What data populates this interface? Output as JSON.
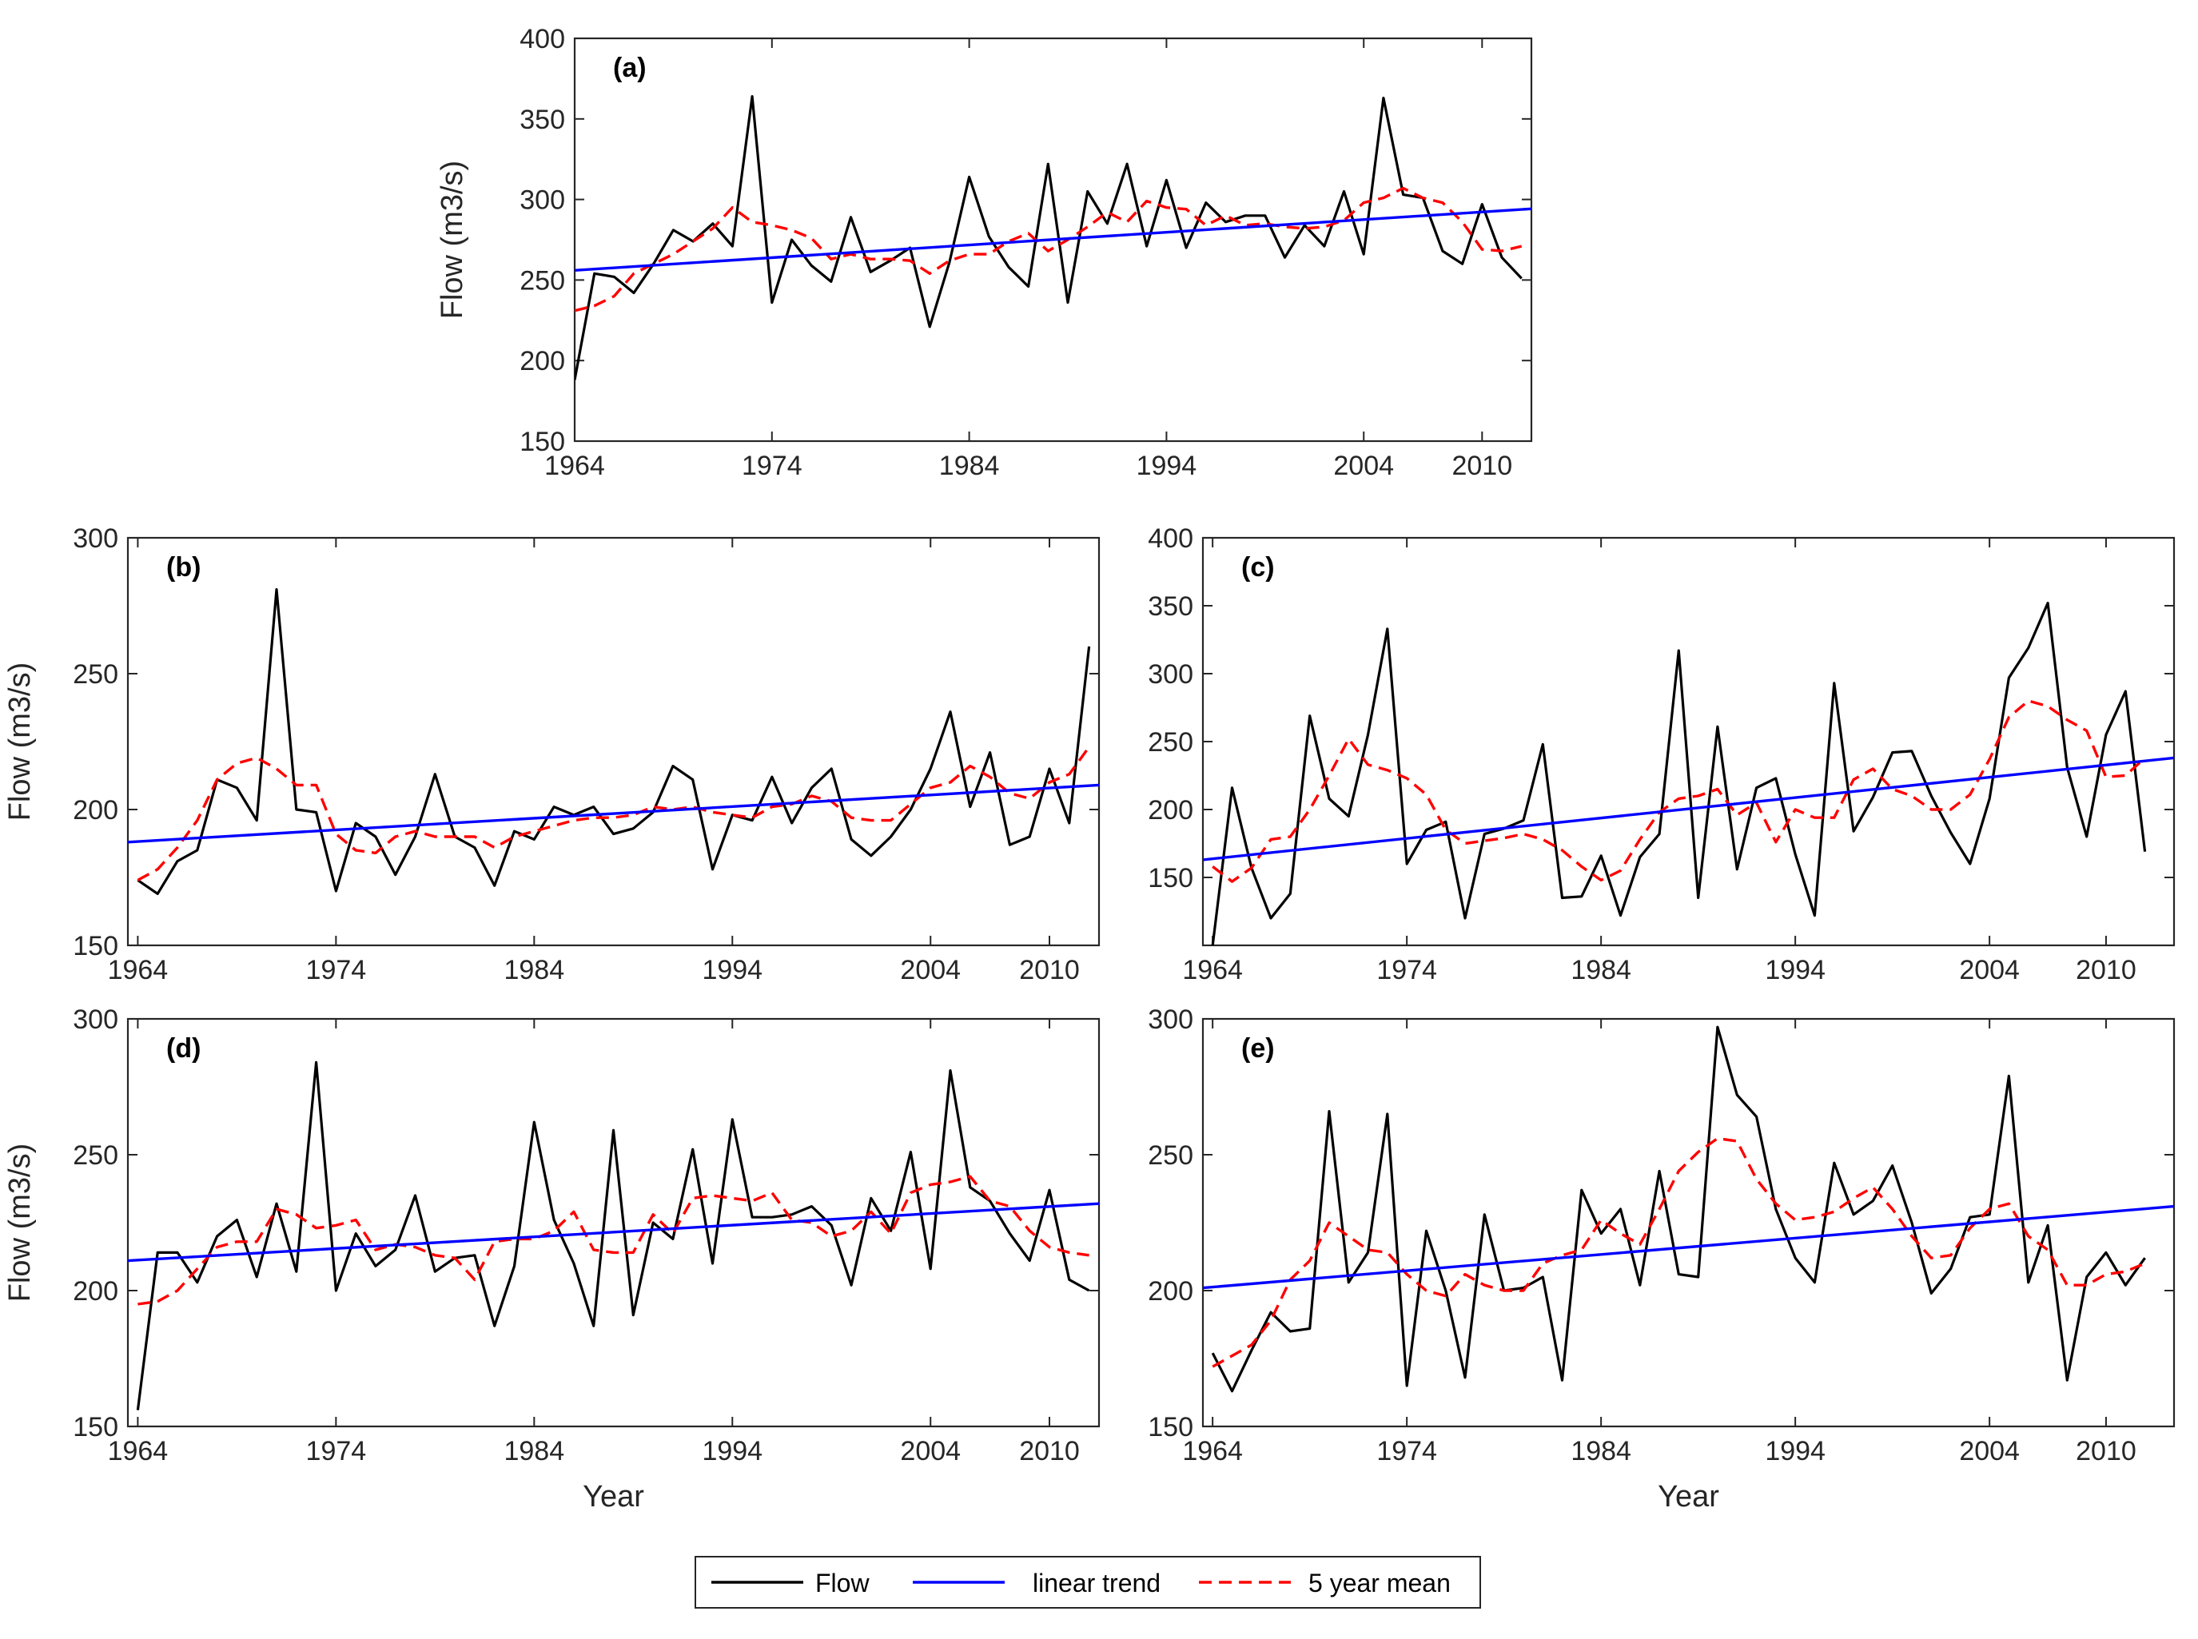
{
  "colors": {
    "flow": "#000000",
    "linear_trend": "#0000ff",
    "five_year_mean": "#ff0000",
    "axes": "#262626",
    "background": "#ffffff"
  },
  "legend": {
    "placement": "bottom-center",
    "entries": [
      {
        "name": "Flow",
        "style": "solid",
        "color_key": "flow"
      },
      {
        "name": "linear trend",
        "style": "solid",
        "color_key": "linear_trend"
      },
      {
        "name": "5 year mean",
        "style": "dashed",
        "color_key": "five_year_mean"
      }
    ]
  },
  "chart_data": [
    {
      "panel": "(a)",
      "type": "line",
      "title": "",
      "xlabel": "",
      "ylabel": "Flow (m3/s)",
      "xlim": [
        1964,
        2012.5
      ],
      "ylim": [
        150,
        400
      ],
      "xticks": [
        1964,
        1974,
        1984,
        1994,
        2004,
        2010
      ],
      "yticks": [
        150,
        200,
        250,
        300,
        350,
        400
      ],
      "x": [
        1964,
        1965,
        1966,
        1967,
        1968,
        1969,
        1970,
        1971,
        1972,
        1973,
        1974,
        1975,
        1976,
        1977,
        1978,
        1979,
        1980,
        1981,
        1982,
        1983,
        1984,
        1985,
        1986,
        1987,
        1988,
        1989,
        1990,
        1991,
        1992,
        1993,
        1994,
        1995,
        1996,
        1997,
        1998,
        1999,
        2000,
        2001,
        2002,
        2003,
        2004,
        2005,
        2006,
        2007,
        2008,
        2009,
        2010,
        2011,
        2012
      ],
      "series": [
        {
          "name": "Flow",
          "style": "solid",
          "color_key": "flow",
          "values": [
            188,
            254,
            252,
            242,
            260,
            281,
            274,
            285,
            271,
            364,
            236,
            275,
            259,
            249,
            289,
            255,
            262,
            270,
            221,
            261,
            314,
            277,
            258,
            246,
            322,
            236,
            305,
            285,
            322,
            271,
            312,
            270,
            298,
            286,
            290,
            290,
            264,
            284,
            271,
            305,
            266,
            363,
            303,
            301,
            268,
            260,
            297,
            264,
            251
          ]
        },
        {
          "name": "5 year mean",
          "style": "dashed",
          "color_key": "five_year_mean",
          "x": [
            1964,
            1965,
            1966,
            1967,
            1968,
            1969,
            1970,
            1971,
            1972,
            1973,
            1974,
            1975,
            1976,
            1977,
            1978,
            1979,
            1980,
            1981,
            1982,
            1983,
            1984,
            1985,
            1986,
            1987,
            1988,
            1989,
            1990,
            1991,
            1992,
            1993,
            1994,
            1995,
            1996,
            1997,
            1998,
            1999,
            2000,
            2001,
            2002,
            2003,
            2004,
            2005,
            2006,
            2007,
            2008,
            2009,
            2010,
            2011,
            2012
          ],
          "values": [
            231,
            234,
            240,
            254,
            260,
            266,
            274,
            282,
            295,
            286,
            284,
            281,
            276,
            263,
            266,
            263,
            263,
            262,
            254,
            262,
            266,
            266,
            274,
            279,
            268,
            275,
            283,
            292,
            286,
            299,
            295,
            294,
            284,
            290,
            284,
            285,
            283,
            282,
            283,
            287,
            298,
            301,
            307,
            301,
            298,
            286,
            269,
            268,
            271
          ]
        },
        {
          "name": "linear trend",
          "style": "solid",
          "color_key": "linear_trend",
          "x": [
            1964,
            2013.5
          ],
          "values": [
            256,
            295
          ]
        }
      ]
    },
    {
      "panel": "(b)",
      "type": "line",
      "title": "",
      "xlabel": "",
      "ylabel": "Flow (m3/s)",
      "xlim": [
        1963.5,
        2012.5
      ],
      "ylim": [
        150,
        300
      ],
      "xticks": [
        1964,
        1974,
        1984,
        1994,
        2004,
        2010
      ],
      "yticks": [
        150,
        200,
        250,
        300
      ],
      "x": [
        1964,
        1965,
        1966,
        1967,
        1968,
        1969,
        1970,
        1971,
        1972,
        1973,
        1974,
        1975,
        1976,
        1977,
        1978,
        1979,
        1980,
        1981,
        1982,
        1983,
        1984,
        1985,
        1986,
        1987,
        1988,
        1989,
        1990,
        1991,
        1992,
        1993,
        1994,
        1995,
        1996,
        1997,
        1998,
        1999,
        2000,
        2001,
        2002,
        2003,
        2004,
        2005,
        2006,
        2007,
        2008,
        2009,
        2010,
        2011,
        2012
      ],
      "series": [
        {
          "name": "Flow",
          "style": "solid",
          "color_key": "flow",
          "values": [
            174,
            169,
            181,
            185,
            211,
            208,
            196,
            281,
            200,
            199,
            170,
            195,
            190,
            176,
            190,
            213,
            190,
            186,
            172,
            192,
            189,
            201,
            198,
            201,
            191,
            193,
            199,
            216,
            211,
            178,
            198,
            196,
            212,
            195,
            208,
            215,
            189,
            183,
            190,
            200,
            215,
            236,
            201,
            221,
            187,
            190,
            215,
            195,
            260
          ]
        },
        {
          "name": "5 year mean",
          "style": "dashed",
          "color_key": "five_year_mean",
          "values": [
            174,
            178,
            186,
            196,
            211,
            217,
            219,
            215,
            209,
            209,
            191,
            185,
            184,
            190,
            192,
            190,
            190,
            190,
            186,
            190,
            192,
            194,
            196,
            197,
            197,
            198,
            201,
            200,
            201,
            199,
            198,
            197,
            201,
            202,
            205,
            203,
            197,
            196,
            196,
            202,
            208,
            210,
            216,
            212,
            206,
            204,
            210,
            213,
            223
          ]
        },
        {
          "name": "linear trend",
          "style": "solid",
          "color_key": "linear_trend",
          "x": [
            1963.5,
            2012.5
          ],
          "values": [
            188,
            209
          ]
        }
      ]
    },
    {
      "panel": "(c)",
      "type": "line",
      "title": "",
      "xlabel": "",
      "ylabel": "",
      "xlim": [
        1963.5,
        2013.5
      ],
      "ylim": [
        100,
        400
      ],
      "xticks": [
        1964,
        1974,
        1984,
        1994,
        2004,
        2010
      ],
      "yticks": [
        150,
        200,
        250,
        300,
        350,
        400
      ],
      "x": [
        1964,
        1965,
        1966,
        1967,
        1968,
        1969,
        1970,
        1971,
        1972,
        1973,
        1974,
        1975,
        1976,
        1977,
        1978,
        1979,
        1980,
        1981,
        1982,
        1983,
        1984,
        1985,
        1986,
        1987,
        1988,
        1989,
        1990,
        1991,
        1992,
        1993,
        1994,
        1995,
        1996,
        1997,
        1998,
        1999,
        2000,
        2001,
        2002,
        2003,
        2004,
        2005,
        2006,
        2007,
        2008,
        2009,
        2010,
        2011,
        2012
      ],
      "series": [
        {
          "name": "Flow",
          "style": "solid",
          "color_key": "flow",
          "values": [
            100,
            216,
            157,
            120,
            138,
            269,
            208,
            195,
            255,
            333,
            160,
            185,
            191,
            120,
            182,
            186,
            192,
            248,
            135,
            136,
            166,
            122,
            165,
            182,
            317,
            135,
            261,
            156,
            216,
            223,
            167,
            122,
            293,
            184,
            209,
            242,
            243,
            210,
            183,
            160,
            208,
            297,
            319,
            352,
            231,
            180,
            255,
            287,
            169
          ]
        },
        {
          "name": "5 year mean",
          "style": "dashed",
          "color_key": "five_year_mean",
          "values": [
            158,
            147,
            157,
            178,
            180,
            200,
            225,
            252,
            233,
            229,
            223,
            211,
            185,
            175,
            177,
            179,
            182,
            178,
            170,
            158,
            148,
            155,
            178,
            198,
            208,
            210,
            215,
            196,
            205,
            176,
            200,
            194,
            194,
            222,
            230,
            215,
            210,
            200,
            200,
            211,
            237,
            268,
            280,
            276,
            266,
            258,
            224,
            225,
            238
          ]
        },
        {
          "name": "linear trend",
          "style": "solid",
          "color_key": "linear_trend",
          "x": [
            1963.5,
            2013.5
          ],
          "values": [
            163,
            238
          ]
        }
      ]
    },
    {
      "panel": "(d)",
      "type": "line",
      "title": "",
      "xlabel": "Year",
      "ylabel": "Flow (m3/s)",
      "xlim": [
        1963.5,
        2012.5
      ],
      "ylim": [
        150,
        300
      ],
      "xticks": [
        1964,
        1974,
        1984,
        1994,
        2004,
        2010
      ],
      "yticks": [
        150,
        200,
        250,
        300
      ],
      "x": [
        1964,
        1965,
        1966,
        1967,
        1968,
        1969,
        1970,
        1971,
        1972,
        1973,
        1974,
        1975,
        1976,
        1977,
        1978,
        1979,
        1980,
        1981,
        1982,
        1983,
        1984,
        1985,
        1986,
        1987,
        1988,
        1989,
        1990,
        1991,
        1992,
        1993,
        1994,
        1995,
        1996,
        1997,
        1998,
        1999,
        2000,
        2001,
        2002,
        2003,
        2004,
        2005,
        2006,
        2007,
        2008,
        2009,
        2010,
        2011,
        2012
      ],
      "series": [
        {
          "name": "Flow",
          "style": "solid",
          "color_key": "flow",
          "values": [
            156,
            214,
            214,
            203,
            220,
            226,
            205,
            232,
            207,
            284,
            200,
            221,
            209,
            215,
            235,
            207,
            212,
            213,
            187,
            209,
            262,
            226,
            210,
            187,
            259,
            191,
            225,
            219,
            252,
            210,
            263,
            227,
            227,
            228,
            231,
            224,
            202,
            234,
            222,
            251,
            208,
            281,
            238,
            233,
            221,
            211,
            237,
            204,
            200
          ]
        },
        {
          "name": "5 year mean",
          "style": "dashed",
          "color_key": "five_year_mean",
          "values": [
            195,
            196,
            200,
            208,
            216,
            218,
            218,
            230,
            228,
            223,
            224,
            226,
            215,
            217,
            216,
            213,
            212,
            204,
            218,
            219,
            219,
            222,
            229,
            215,
            214,
            214,
            228,
            221,
            234,
            235,
            234,
            233,
            236,
            226,
            225,
            220,
            222,
            229,
            221,
            236,
            239,
            240,
            242,
            233,
            231,
            222,
            216,
            214,
            213
          ]
        },
        {
          "name": "linear trend",
          "style": "solid",
          "color_key": "linear_trend",
          "x": [
            1963.5,
            2012.5
          ],
          "values": [
            211,
            232
          ]
        }
      ]
    },
    {
      "panel": "(e)",
      "type": "line",
      "title": "",
      "xlabel": "Year",
      "ylabel": "",
      "xlim": [
        1963.5,
        2013.5
      ],
      "ylim": [
        150,
        300
      ],
      "xticks": [
        1964,
        1974,
        1984,
        1994,
        2004,
        2010
      ],
      "yticks": [
        150,
        200,
        250,
        300
      ],
      "x": [
        1964,
        1965,
        1966,
        1967,
        1968,
        1969,
        1970,
        1971,
        1972,
        1973,
        1974,
        1975,
        1976,
        1977,
        1978,
        1979,
        1980,
        1981,
        1982,
        1983,
        1984,
        1985,
        1986,
        1987,
        1988,
        1989,
        1990,
        1991,
        1992,
        1993,
        1994,
        1995,
        1996,
        1997,
        1998,
        1999,
        2000,
        2001,
        2002,
        2003,
        2004,
        2005,
        2006,
        2007,
        2008,
        2009,
        2010,
        2011,
        2012
      ],
      "series": [
        {
          "name": "Flow",
          "style": "solid",
          "color_key": "flow",
          "values": [
            177,
            163,
            178,
            192,
            185,
            186,
            266,
            203,
            214,
            265,
            165,
            222,
            200,
            168,
            228,
            200,
            201,
            205,
            167,
            237,
            221,
            230,
            202,
            244,
            206,
            205,
            297,
            272,
            264,
            230,
            212,
            203,
            247,
            228,
            233,
            246,
            225,
            199,
            208,
            227,
            228,
            279,
            203,
            224,
            167,
            205,
            214,
            202,
            212
          ]
        },
        {
          "name": "5 year mean",
          "style": "dashed",
          "color_key": "five_year_mean",
          "values": [
            172,
            176,
            180,
            189,
            204,
            211,
            225,
            220,
            215,
            214,
            206,
            200,
            198,
            206,
            202,
            200,
            200,
            210,
            213,
            215,
            226,
            221,
            217,
            230,
            244,
            251,
            256,
            255,
            241,
            232,
            226,
            227,
            229,
            234,
            238,
            230,
            220,
            212,
            213,
            223,
            230,
            232,
            220,
            215,
            202,
            202,
            206,
            207,
            210
          ]
        },
        {
          "name": "linear trend",
          "style": "solid",
          "color_key": "linear_trend",
          "x": [
            1963.5,
            2013.5
          ],
          "values": [
            201,
            231
          ]
        }
      ]
    }
  ]
}
